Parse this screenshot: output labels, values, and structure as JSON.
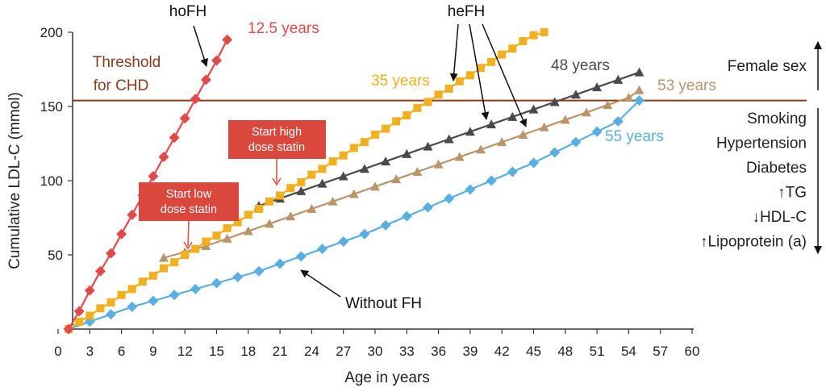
{
  "chart_data": {
    "type": "line",
    "xlabel": "Age in years",
    "ylabel": "Cumulative LDL-C (mmol)",
    "xlim": [
      0,
      60
    ],
    "ylim": [
      0,
      200
    ],
    "x_ticks": [
      0,
      3,
      6,
      9,
      12,
      15,
      18,
      21,
      24,
      27,
      30,
      33,
      36,
      39,
      42,
      45,
      48,
      51,
      54,
      57,
      60
    ],
    "y_ticks": [
      50,
      100,
      150,
      200
    ],
    "grid": false,
    "series": [
      {
        "name": "hoFH",
        "color": "#e04a4a",
        "marker": "diamond",
        "x": [
          1,
          2,
          3,
          4,
          5,
          6,
          7,
          8,
          9,
          10,
          11,
          12,
          13,
          14,
          15,
          16
        ],
        "y": [
          0,
          12,
          26,
          39,
          51,
          64,
          77,
          90,
          103,
          116,
          129,
          142,
          155,
          168,
          181,
          195
        ]
      },
      {
        "name": "heFH",
        "color": "#f0b020",
        "marker": "square",
        "x": [
          1,
          2,
          3,
          4,
          5,
          6,
          7,
          8,
          9,
          10,
          11,
          12,
          13,
          14,
          15,
          16,
          17,
          18,
          19,
          20,
          21,
          22,
          23,
          24,
          25,
          26,
          27,
          28,
          29,
          30,
          31,
          32,
          33,
          34,
          35,
          36,
          37,
          38,
          39,
          40,
          41,
          42,
          43,
          44,
          45,
          46
        ],
        "y": [
          0,
          5,
          9,
          14,
          18,
          23,
          27,
          32,
          36,
          41,
          45,
          50,
          54,
          59,
          63,
          68,
          72,
          77,
          81,
          86,
          90,
          95,
          99,
          104,
          108,
          113,
          117,
          122,
          126,
          131,
          135,
          140,
          144,
          149,
          153,
          158,
          162,
          167,
          171,
          176,
          180,
          185,
          189,
          194,
          198,
          200
        ]
      },
      {
        "name": "heFH, start low dose statin",
        "color": "#b8956a",
        "marker": "triangle",
        "x": [
          10,
          12,
          14,
          16,
          18,
          20,
          22,
          24,
          26,
          28,
          30,
          32,
          34,
          36,
          38,
          40,
          42,
          44,
          46,
          48,
          50,
          52,
          54,
          55
        ],
        "y": [
          48,
          52,
          56,
          61,
          66,
          71,
          76,
          81,
          86,
          91,
          96,
          101,
          106,
          111,
          116,
          121,
          126,
          131,
          136,
          141,
          146,
          151,
          156,
          161
        ]
      },
      {
        "name": "heFH, start high dose statin",
        "color": "#4a4a4a",
        "marker": "triangle",
        "x": [
          19,
          21,
          23,
          25,
          27,
          29,
          31,
          33,
          35,
          37,
          39,
          41,
          43,
          45,
          47,
          49,
          51,
          53,
          55
        ],
        "y": [
          83,
          88,
          93,
          98,
          103,
          108,
          113,
          118,
          123,
          128,
          133,
          138,
          143,
          148,
          153,
          158,
          163,
          168,
          173
        ]
      },
      {
        "name": "Without FH",
        "color": "#5aaee0",
        "marker": "diamond",
        "x": [
          1,
          3,
          5,
          7,
          9,
          11,
          13,
          15,
          17,
          19,
          21,
          23,
          25,
          27,
          29,
          31,
          33,
          35,
          37,
          39,
          41,
          43,
          45,
          47,
          49,
          51,
          53,
          55
        ],
        "y": [
          0,
          5,
          10,
          15,
          19,
          23,
          27,
          31,
          35,
          39,
          44,
          49,
          54,
          59,
          64,
          70,
          76,
          82,
          88,
          94,
          100,
          106,
          112,
          119,
          126,
          133,
          140,
          154
        ]
      }
    ],
    "threshold": {
      "y": 154,
      "label_line1": "Threshold",
      "label_line2": "for CHD",
      "color": "#8b3a1a"
    },
    "annotations": {
      "hofh_label": "hoFH",
      "hefh_label": "heFH",
      "without_fh_label": "Without FH",
      "years_12_5": "12.5 years",
      "years_35": "35 years",
      "years_48": "48 years",
      "years_53": "53 years",
      "years_55": "55 years",
      "start_low_line1": "Start low",
      "start_low_line2": "dose statin",
      "start_high_line1": "Start high",
      "start_high_line2": "dose statin"
    },
    "side_labels": {
      "up": [
        "Female sex"
      ],
      "down": [
        "Smoking",
        "Hypertension",
        "Diabetes",
        "↑TG",
        "↓HDL-C",
        "↑Lipoprotein (a)"
      ]
    }
  }
}
